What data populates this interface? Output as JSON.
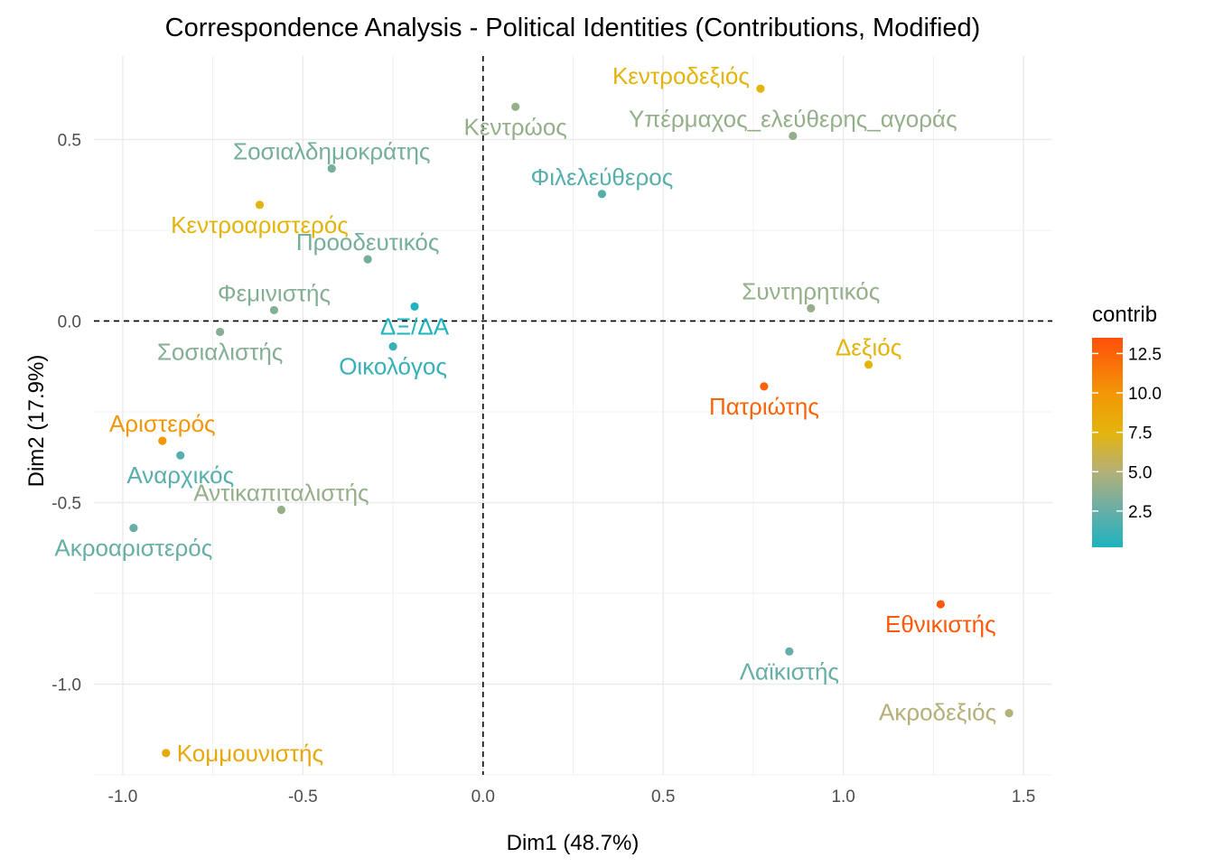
{
  "chart_data": {
    "type": "scatter",
    "title": "Correspondence Analysis - Political Identities (Contributions, Modified)",
    "xlabel": "Dim1 (48.7%)",
    "ylabel": "Dim2 (17.9%)",
    "xlim": [
      -1.08,
      1.58
    ],
    "ylim": [
      -1.25,
      0.73
    ],
    "x_ticks": [
      -1.0,
      -0.5,
      0.0,
      0.5,
      1.0,
      1.5
    ],
    "x_tick_labels": [
      "-1.0",
      "-0.5",
      "0.0",
      "0.5",
      "1.0",
      "1.5"
    ],
    "y_ticks": [
      -1.0,
      -0.5,
      0.0,
      0.5
    ],
    "y_tick_labels": [
      "-1.0",
      "-0.5",
      "0.0",
      "0.5"
    ],
    "grid": true,
    "reference_lines": {
      "x": 0,
      "y": 0,
      "style": "dashed"
    },
    "color_legend": {
      "title": "contrib",
      "placement": "right",
      "min": 0.2,
      "max": 13.5,
      "ticks": [
        2.5,
        5.0,
        7.5,
        10.0,
        12.5
      ],
      "tick_labels": [
        "2.5",
        "5.0",
        "7.5",
        "10.0",
        "12.5"
      ],
      "stops": [
        {
          "value": 0.2,
          "color": "#1fb3bf"
        },
        {
          "value": 2.5,
          "color": "#66aea6"
        },
        {
          "value": 5.0,
          "color": "#b4b078"
        },
        {
          "value": 7.5,
          "color": "#e3b40c"
        },
        {
          "value": 10.0,
          "color": "#f39607"
        },
        {
          "value": 13.5,
          "color": "#ff4f0a"
        }
      ]
    },
    "points": [
      {
        "label": "Κεντροδεξιός",
        "x": 0.77,
        "y": 0.64,
        "contrib": 7.5,
        "label_pos": "upper-left"
      },
      {
        "label": "Κεντρώος",
        "x": 0.09,
        "y": 0.59,
        "contrib": 4.0,
        "label_pos": "below"
      },
      {
        "label": "Υπέρμαχος_ελεύθερης_αγοράς",
        "x": 0.86,
        "y": 0.51,
        "contrib": 4.0,
        "label_pos": "above"
      },
      {
        "label": "Σοσιαλδημοκράτης",
        "x": -0.42,
        "y": 0.42,
        "contrib": 3.0,
        "label_pos": "above"
      },
      {
        "label": "Φιλελεύθερος",
        "x": 0.33,
        "y": 0.35,
        "contrib": 2.0,
        "label_pos": "above"
      },
      {
        "label": "Κεντροαριστερός",
        "x": -0.62,
        "y": 0.32,
        "contrib": 7.5,
        "label_pos": "below"
      },
      {
        "label": "Προοδευτικός",
        "x": -0.32,
        "y": 0.17,
        "contrib": 3.0,
        "label_pos": "above"
      },
      {
        "label": "Φεμινιστής",
        "x": -0.58,
        "y": 0.03,
        "contrib": 3.5,
        "label_pos": "above"
      },
      {
        "label": "Συντηρητικός",
        "x": 0.91,
        "y": 0.035,
        "contrib": 4.0,
        "label_pos": "above"
      },
      {
        "label": "ΔΞ/ΔΑ",
        "x": -0.19,
        "y": 0.04,
        "contrib": 0.2,
        "label_pos": "below"
      },
      {
        "label": "Σοσιαλιστής",
        "x": -0.73,
        "y": -0.03,
        "contrib": 3.5,
        "label_pos": "below"
      },
      {
        "label": "Οικολόγος",
        "x": -0.25,
        "y": -0.07,
        "contrib": 1.0,
        "label_pos": "below"
      },
      {
        "label": "Δεξιός",
        "x": 1.07,
        "y": -0.12,
        "contrib": 7.5,
        "label_pos": "above"
      },
      {
        "label": "Πατριώτης",
        "x": 0.78,
        "y": -0.18,
        "contrib": 12.5,
        "label_pos": "below"
      },
      {
        "label": "Αριστερός",
        "x": -0.89,
        "y": -0.33,
        "contrib": 10.0,
        "label_pos": "above"
      },
      {
        "label": "Αναρχικός",
        "x": -0.84,
        "y": -0.37,
        "contrib": 2.0,
        "label_pos": "below"
      },
      {
        "label": "Αντικαπιταλιστής",
        "x": -0.56,
        "y": -0.52,
        "contrib": 4.0,
        "label_pos": "above"
      },
      {
        "label": "Ακροαριστερός",
        "x": -0.97,
        "y": -0.57,
        "contrib": 2.5,
        "label_pos": "below"
      },
      {
        "label": "Εθνικιστής",
        "x": 1.27,
        "y": -0.78,
        "contrib": 13.0,
        "label_pos": "below"
      },
      {
        "label": "Λαϊκιστής",
        "x": 0.85,
        "y": -0.91,
        "contrib": 2.5,
        "label_pos": "below"
      },
      {
        "label": "Ακροδεξιός",
        "x": 1.46,
        "y": -1.08,
        "contrib": 5.0,
        "label_pos": "left"
      },
      {
        "label": "Κομμουνιστής",
        "x": -0.88,
        "y": -1.19,
        "contrib": 8.5,
        "label_pos": "right"
      }
    ]
  }
}
